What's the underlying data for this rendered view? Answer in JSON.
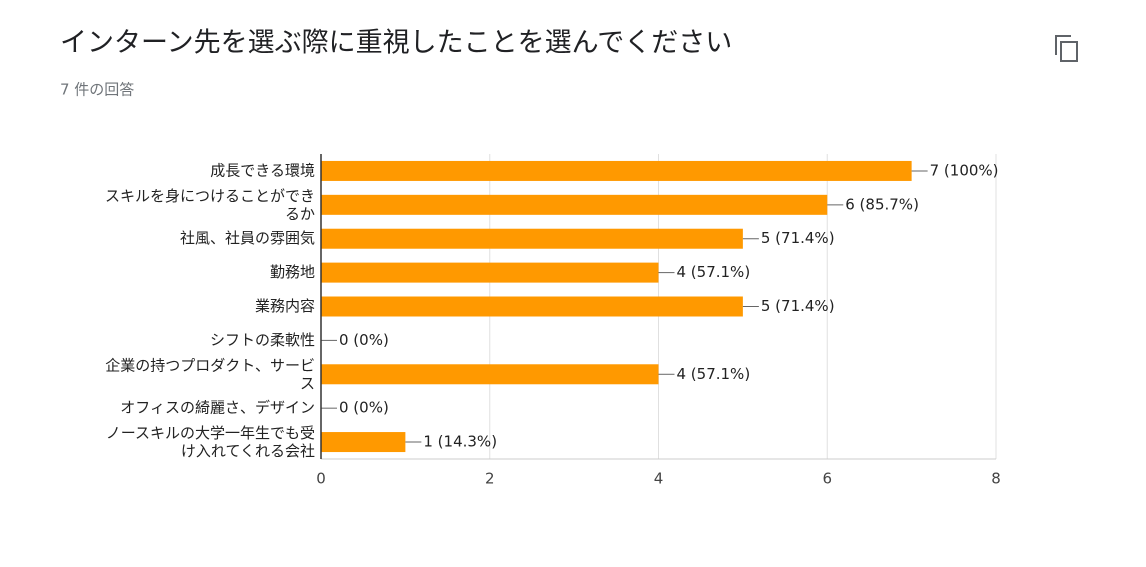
{
  "chart_data": {
    "type": "bar",
    "orientation": "horizontal",
    "title": "インターン先を選ぶ際に重視したことを選んでください",
    "subtitle": "7 件の回答",
    "categories": [
      "成長できる環境",
      "スキルを身につけることができるか",
      "社風、社員の雰囲気",
      "勤務地",
      "業務内容",
      "シフトの柔軟性",
      "企業の持つプロダクト、サービス",
      "オフィスの綺麗さ、デザイン",
      "ノースキルの大学一年生でも受け入れてくれる会社"
    ],
    "values": [
      7,
      6,
      5,
      4,
      5,
      0,
      4,
      0,
      1
    ],
    "value_labels": [
      "7 (100%)",
      "6 (85.7%)",
      "5 (71.4%)",
      "4 (57.1%)",
      "5 (71.4%)",
      "0 (0%)",
      "4 (57.1%)",
      "0 (0%)",
      "1 (14.3%)"
    ],
    "color": "#ff9900",
    "xlim": [
      0,
      8
    ],
    "xticks": [
      0,
      2,
      4,
      6,
      8
    ],
    "grid": true
  }
}
